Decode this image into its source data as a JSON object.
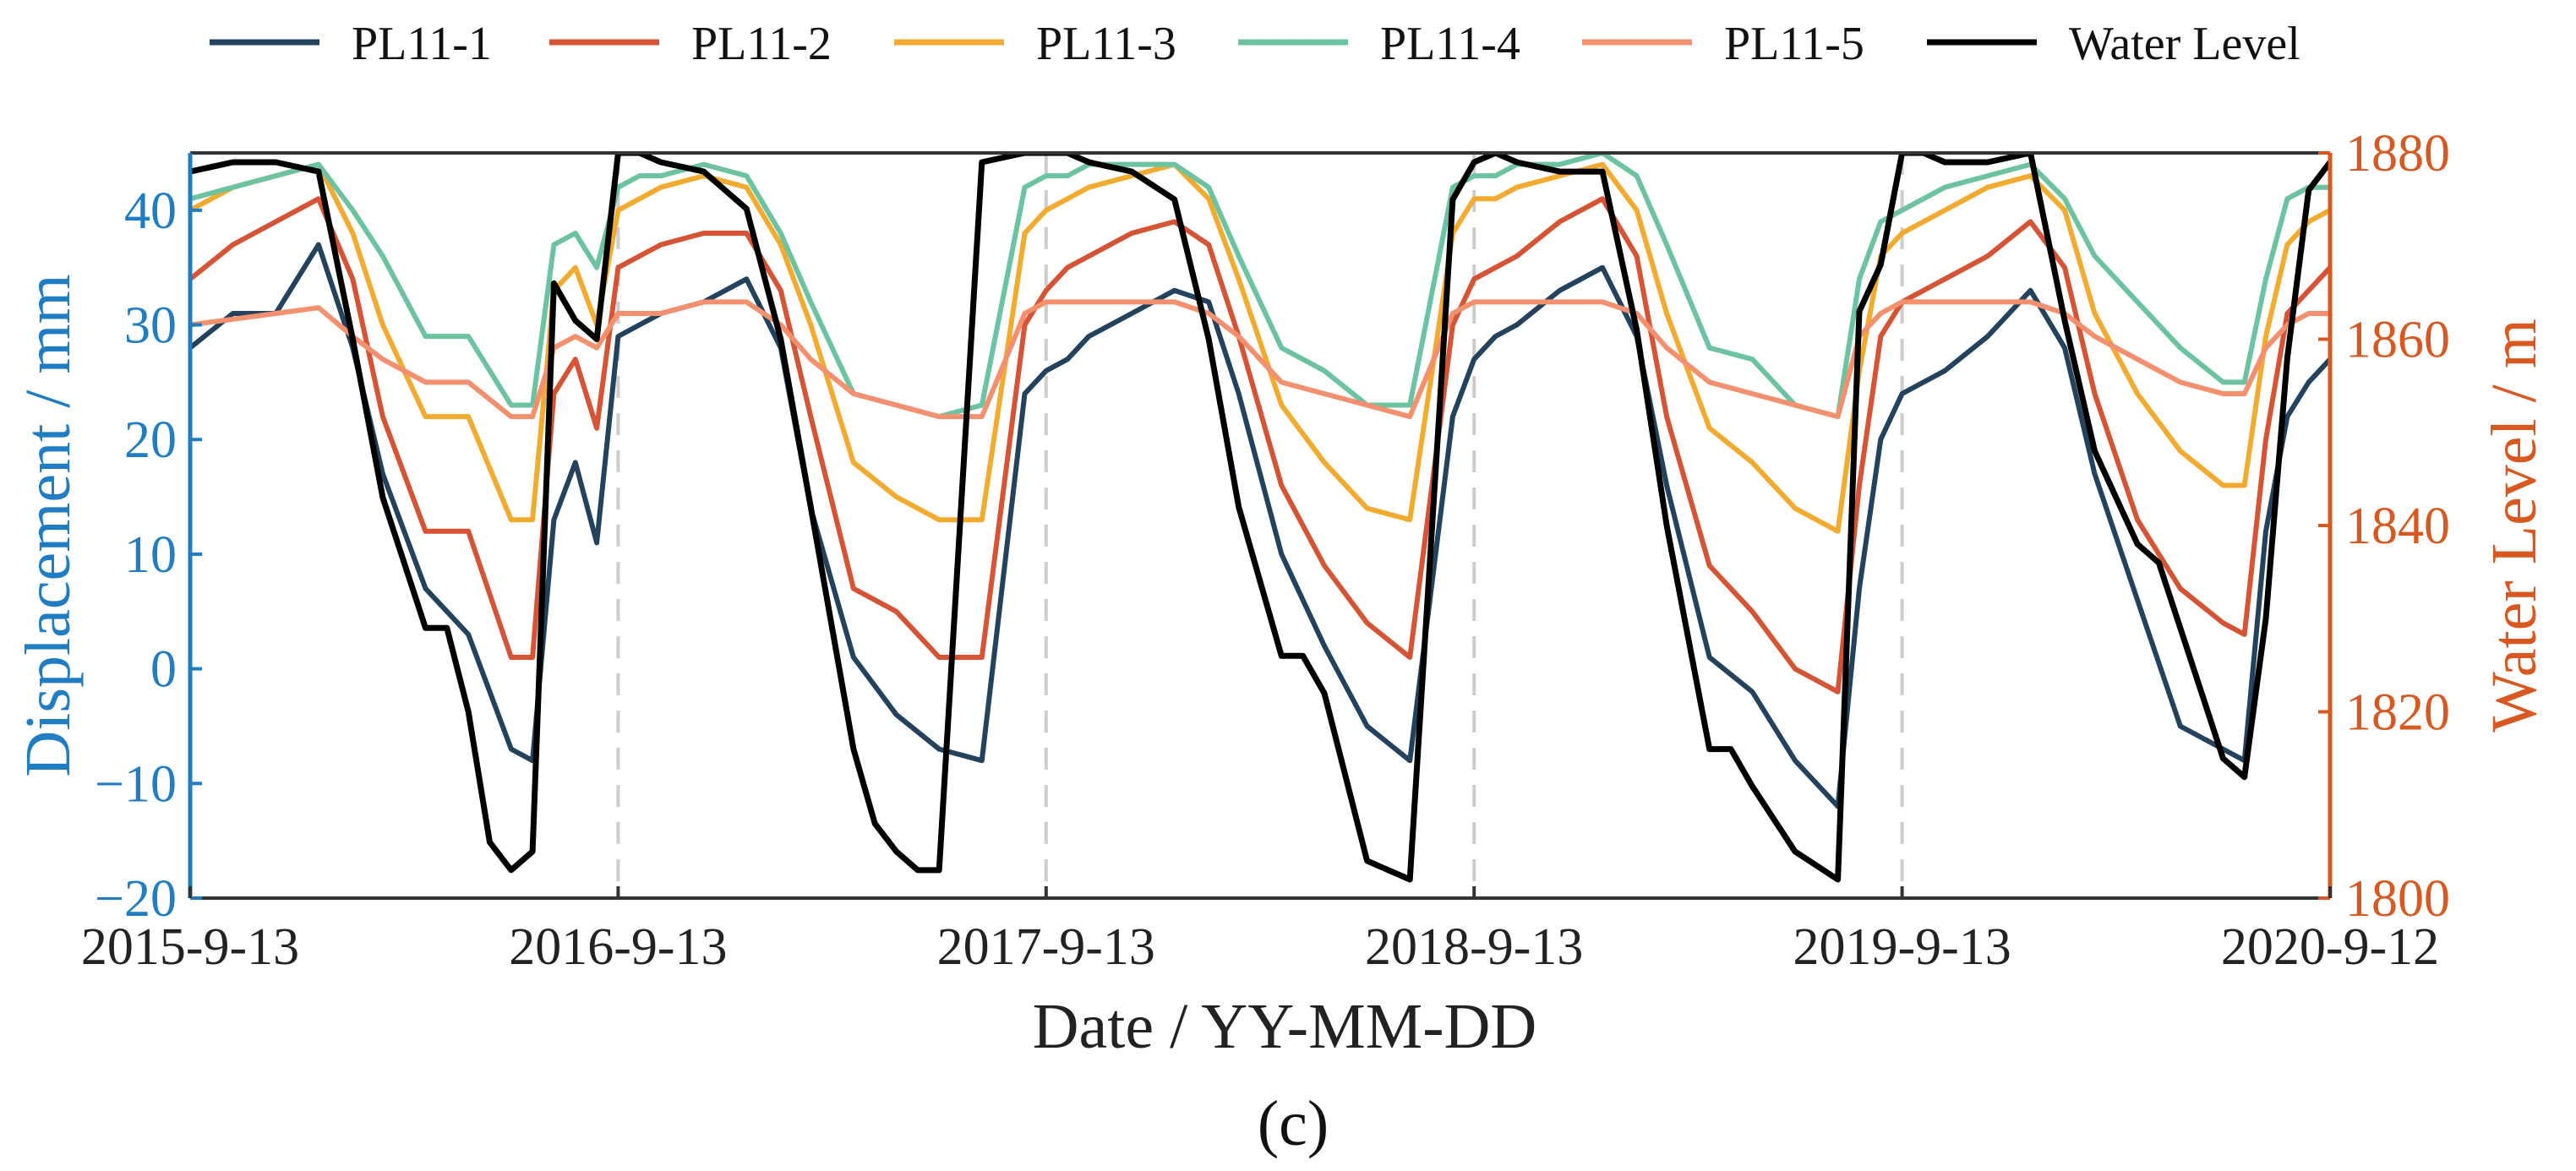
{
  "chart_data": {
    "type": "line",
    "xlabel": "Date / YY-MM-DD",
    "ylabel_left": "Displacement / mm",
    "ylabel_right": "Water Level / m",
    "caption": "(c)",
    "x_range": [
      0,
      5
    ],
    "x_unit": "years since 2015-9-13",
    "x_ticks": [
      0,
      1,
      2,
      3,
      4,
      5
    ],
    "x_tick_labels": [
      "2015-9-13",
      "2016-9-13",
      "2017-9-13",
      "2018-9-13",
      "2019-9-13",
      "2020-9-12"
    ],
    "vertical_dashed_lines_at": [
      1,
      2,
      3,
      4
    ],
    "ylim_left": [
      -20,
      45
    ],
    "yticks_left": [
      -20,
      -10,
      0,
      10,
      20,
      30,
      40
    ],
    "ytick_labels_left": [
      "−20",
      "−10",
      "0",
      "10",
      "20",
      "30",
      "40"
    ],
    "ylim_right": [
      1800,
      1880
    ],
    "yticks_right": [
      1800,
      1820,
      1840,
      1860,
      1880
    ],
    "ytick_labels_right": [
      "1800",
      "1820",
      "1840",
      "1860",
      "1880"
    ],
    "colors": {
      "left_axis": "#1f7dc4",
      "right_axis": "#d9581f",
      "frame": "#333333",
      "dash": "#cccccc"
    },
    "series": [
      {
        "name": "PL11-1",
        "axis": "left",
        "color": "#22425d",
        "x": [
          0.0,
          0.1,
          0.2,
          0.3,
          0.38,
          0.45,
          0.55,
          0.65,
          0.75,
          0.8,
          0.85,
          0.9,
          0.95,
          1.0,
          1.05,
          1.1,
          1.2,
          1.3,
          1.38,
          1.45,
          1.55,
          1.65,
          1.75,
          1.85,
          1.95,
          2.0,
          2.05,
          2.1,
          2.2,
          2.3,
          2.38,
          2.45,
          2.55,
          2.65,
          2.75,
          2.85,
          2.95,
          3.0,
          3.05,
          3.1,
          3.2,
          3.3,
          3.38,
          3.45,
          3.55,
          3.65,
          3.75,
          3.85,
          3.9,
          3.95,
          4.0,
          4.05,
          4.1,
          4.2,
          4.3,
          4.38,
          4.45,
          4.55,
          4.65,
          4.75,
          4.8,
          4.85,
          4.9,
          4.95,
          5.0
        ],
        "y": [
          28,
          31,
          31,
          37,
          28,
          17,
          7,
          3,
          -7,
          -8,
          13,
          18,
          11,
          29,
          30,
          31,
          32,
          34,
          28,
          14,
          1,
          -4,
          -7,
          -8,
          24,
          26,
          27,
          29,
          31,
          33,
          32,
          24,
          10,
          2,
          -5,
          -8,
          22,
          27,
          29,
          30,
          33,
          35,
          29,
          16,
          1,
          -2,
          -8,
          -12,
          7,
          20,
          24,
          25,
          26,
          29,
          33,
          28,
          17,
          6,
          -5,
          -7,
          -8,
          12,
          22,
          25,
          27
        ]
      },
      {
        "name": "PL11-2",
        "axis": "left",
        "color": "#d65434",
        "x": [
          0.0,
          0.1,
          0.2,
          0.3,
          0.38,
          0.45,
          0.55,
          0.65,
          0.75,
          0.8,
          0.85,
          0.9,
          0.95,
          1.0,
          1.05,
          1.1,
          1.2,
          1.3,
          1.38,
          1.45,
          1.55,
          1.65,
          1.75,
          1.85,
          1.95,
          2.0,
          2.05,
          2.1,
          2.2,
          2.3,
          2.38,
          2.45,
          2.55,
          2.65,
          2.75,
          2.85,
          2.95,
          3.0,
          3.05,
          3.1,
          3.2,
          3.3,
          3.38,
          3.45,
          3.55,
          3.65,
          3.75,
          3.85,
          3.9,
          3.95,
          4.0,
          4.05,
          4.1,
          4.2,
          4.3,
          4.38,
          4.45,
          4.55,
          4.65,
          4.75,
          4.8,
          4.85,
          4.9,
          4.95,
          5.0
        ],
        "y": [
          34,
          37,
          39,
          41,
          34,
          22,
          12,
          12,
          1,
          1,
          24,
          27,
          21,
          35,
          36,
          37,
          38,
          38,
          33,
          22,
          7,
          5,
          1,
          1,
          30,
          33,
          35,
          36,
          38,
          39,
          37,
          29,
          16,
          9,
          4,
          1,
          30,
          34,
          35,
          36,
          39,
          41,
          36,
          22,
          9,
          5,
          0,
          -2,
          16,
          29,
          32,
          33,
          34,
          36,
          39,
          35,
          24,
          13,
          7,
          4,
          3,
          20,
          31,
          33,
          35
        ]
      },
      {
        "name": "PL11-3",
        "axis": "left",
        "color": "#f2ab2e",
        "x": [
          0.0,
          0.1,
          0.2,
          0.3,
          0.38,
          0.45,
          0.55,
          0.65,
          0.75,
          0.8,
          0.85,
          0.9,
          0.95,
          1.0,
          1.05,
          1.1,
          1.2,
          1.3,
          1.38,
          1.45,
          1.55,
          1.65,
          1.75,
          1.85,
          1.95,
          2.0,
          2.05,
          2.1,
          2.2,
          2.3,
          2.38,
          2.45,
          2.55,
          2.65,
          2.75,
          2.85,
          2.95,
          3.0,
          3.05,
          3.1,
          3.2,
          3.3,
          3.38,
          3.45,
          3.55,
          3.65,
          3.75,
          3.85,
          3.9,
          3.95,
          4.0,
          4.05,
          4.1,
          4.2,
          4.3,
          4.38,
          4.45,
          4.55,
          4.65,
          4.75,
          4.8,
          4.85,
          4.9,
          4.95,
          5.0
        ],
        "y": [
          40,
          42,
          43,
          44,
          38,
          30,
          22,
          22,
          13,
          13,
          33,
          35,
          30,
          40,
          41,
          42,
          43,
          42,
          37,
          30,
          18,
          15,
          13,
          13,
          38,
          40,
          41,
          42,
          43,
          44,
          41,
          34,
          23,
          18,
          14,
          13,
          38,
          41,
          41,
          42,
          43,
          44,
          40,
          31,
          21,
          18,
          14,
          12,
          26,
          36,
          38,
          39,
          40,
          42,
          43,
          40,
          31,
          24,
          19,
          16,
          16,
          29,
          37,
          39,
          40
        ]
      },
      {
        "name": "PL11-4",
        "axis": "left",
        "color": "#6cc3a0",
        "x": [
          0.0,
          0.1,
          0.2,
          0.3,
          0.38,
          0.45,
          0.55,
          0.65,
          0.75,
          0.8,
          0.85,
          0.9,
          0.95,
          1.0,
          1.05,
          1.1,
          1.2,
          1.3,
          1.38,
          1.45,
          1.55,
          1.65,
          1.75,
          1.85,
          1.95,
          2.0,
          2.05,
          2.1,
          2.2,
          2.3,
          2.38,
          2.45,
          2.55,
          2.65,
          2.75,
          2.85,
          2.95,
          3.0,
          3.05,
          3.1,
          3.2,
          3.3,
          3.38,
          3.45,
          3.55,
          3.65,
          3.75,
          3.85,
          3.9,
          3.95,
          4.0,
          4.05,
          4.1,
          4.2,
          4.3,
          4.38,
          4.45,
          4.55,
          4.65,
          4.75,
          4.8,
          4.85,
          4.9,
          4.95,
          5.0
        ],
        "y": [
          41,
          42,
          43,
          44,
          40,
          36,
          29,
          29,
          23,
          23,
          37,
          38,
          35,
          42,
          43,
          43,
          44,
          43,
          38,
          32,
          24,
          23,
          22,
          23,
          42,
          43,
          43,
          44,
          44,
          44,
          42,
          36,
          28,
          26,
          23,
          23,
          42,
          43,
          43,
          44,
          44,
          45,
          43,
          37,
          28,
          27,
          23,
          22,
          34,
          39,
          40,
          41,
          42,
          43,
          44,
          41,
          36,
          32,
          28,
          25,
          25,
          34,
          41,
          42,
          42
        ]
      },
      {
        "name": "PL11-5",
        "axis": "left",
        "color": "#f4906e",
        "x": [
          0.0,
          0.1,
          0.2,
          0.3,
          0.38,
          0.45,
          0.55,
          0.65,
          0.75,
          0.8,
          0.85,
          0.9,
          0.95,
          1.0,
          1.05,
          1.1,
          1.2,
          1.3,
          1.38,
          1.45,
          1.55,
          1.65,
          1.75,
          1.85,
          1.95,
          2.0,
          2.05,
          2.1,
          2.2,
          2.3,
          2.38,
          2.45,
          2.55,
          2.65,
          2.75,
          2.85,
          2.95,
          3.0,
          3.05,
          3.1,
          3.2,
          3.3,
          3.38,
          3.45,
          3.55,
          3.65,
          3.75,
          3.85,
          3.9,
          3.95,
          4.0,
          4.05,
          4.1,
          4.2,
          4.3,
          4.38,
          4.45,
          4.55,
          4.65,
          4.75,
          4.8,
          4.85,
          4.9,
          4.95,
          5.0
        ],
        "y": [
          30,
          30.5,
          31,
          31.5,
          29,
          27,
          25,
          25,
          22,
          22,
          28,
          29,
          28,
          31,
          31,
          31,
          32,
          32,
          30,
          27,
          24,
          23,
          22,
          22,
          31,
          32,
          32,
          32,
          32,
          32,
          31,
          29,
          25,
          24,
          23,
          22,
          31,
          32,
          32,
          32,
          32,
          32,
          31,
          28,
          25,
          24,
          23,
          22,
          29,
          31,
          32,
          32,
          32,
          32,
          32,
          31,
          29,
          27,
          25,
          24,
          24,
          28,
          30,
          31,
          31
        ]
      },
      {
        "name": "Water Level",
        "axis": "right",
        "color": "#000000",
        "x": [
          0.0,
          0.1,
          0.2,
          0.3,
          0.38,
          0.45,
          0.55,
          0.6,
          0.65,
          0.7,
          0.75,
          0.8,
          0.85,
          0.9,
          0.95,
          1.0,
          1.05,
          1.1,
          1.2,
          1.3,
          1.38,
          1.45,
          1.55,
          1.6,
          1.65,
          1.7,
          1.75,
          1.85,
          1.95,
          2.0,
          2.05,
          2.1,
          2.2,
          2.3,
          2.38,
          2.45,
          2.55,
          2.6,
          2.65,
          2.75,
          2.85,
          2.95,
          3.0,
          3.05,
          3.1,
          3.2,
          3.3,
          3.38,
          3.45,
          3.55,
          3.6,
          3.65,
          3.75,
          3.85,
          3.9,
          3.95,
          4.0,
          4.05,
          4.1,
          4.2,
          4.3,
          4.38,
          4.45,
          4.55,
          4.6,
          4.65,
          4.75,
          4.8,
          4.85,
          4.9,
          4.95,
          5.0
        ],
        "y": [
          1878,
          1879,
          1879,
          1878,
          1860,
          1843,
          1829,
          1829,
          1820,
          1806,
          1803,
          1805,
          1866,
          1862,
          1860,
          1880,
          1880,
          1879,
          1878,
          1874,
          1860,
          1842,
          1816,
          1808,
          1805,
          1803,
          1803,
          1879,
          1880,
          1880,
          1880,
          1879,
          1878,
          1875,
          1860,
          1842,
          1826,
          1826,
          1822,
          1804,
          1802,
          1875,
          1879,
          1880,
          1879,
          1878,
          1878,
          1861,
          1840,
          1816,
          1816,
          1812,
          1805,
          1802,
          1863,
          1868,
          1880,
          1880,
          1879,
          1879,
          1880,
          1862,
          1848,
          1838,
          1836,
          1829,
          1815,
          1813,
          1830,
          1858,
          1876,
          1879
        ]
      }
    ]
  }
}
